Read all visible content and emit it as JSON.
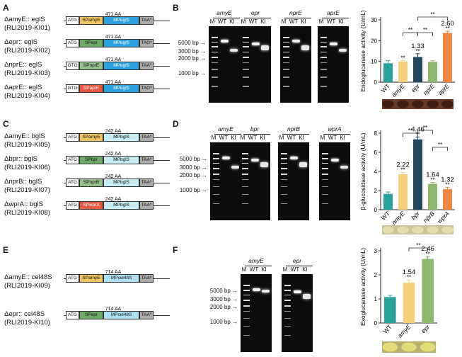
{
  "panels": {
    "A": "A",
    "B": "B",
    "C": "C",
    "D": "D",
    "E": "E",
    "F": "F"
  },
  "colors": {
    "spamyE": "#f1c35f",
    "spepr": "#6dab67",
    "spnprE": "#94c08c",
    "spaprE": "#e9573f",
    "mpegls": "#2aa2dd",
    "mpbgls": "#c6ecf5",
    "mpcel": "#aee0f4",
    "teal": "#2aa19a",
    "yellow": "#f5d07a",
    "navy": "#22465e",
    "green": "#8db86e",
    "orange": "#f08743"
  },
  "constructsA": [
    {
      "name": "ΔamyE:: eglS",
      "id": "(RLI2019-KI01)",
      "start": "ATG",
      "sp": "SPamyE",
      "mp": "MPeglS",
      "stop": "TAA*",
      "aa": "471 AA"
    },
    {
      "name": "Δepr:: eglS",
      "id": "(RLI2019-KI02)",
      "start": "ATG",
      "sp": "SPepr",
      "mp": "MPeglS",
      "stop": "TAG*",
      "aa": "471 AA"
    },
    {
      "name": "ΔnprE:: eglS",
      "id": "(RLI2019-KI03)",
      "start": "GTG",
      "sp": "SPnprE",
      "mp": "MPeglS",
      "stop": "TAA*",
      "aa": "471 AA"
    },
    {
      "name": "ΔaprE:: eglS",
      "id": "(RLI2019-KI04)",
      "start": "GTG",
      "sp": "SPaprE",
      "mp": "MPeglS",
      "stop": "TAG*",
      "aa": "471 AA"
    }
  ],
  "constructsC": [
    {
      "name": "ΔamyE:: bglS",
      "id": "(RLI2019-KI05)",
      "start": "ATG",
      "sp": "SPamyE",
      "mp": "MPbglS",
      "stop": "TAA*",
      "aa": "242 AA"
    },
    {
      "name": "Δbpr:: bglS",
      "id": "(RLI2019-KI06)",
      "start": "ATG",
      "sp": "SPbpr",
      "mp": "MPbglS",
      "stop": "TAA*",
      "aa": "242 AA"
    },
    {
      "name": "ΔnprB:: bglS",
      "id": "(RLI2019-KI07)",
      "start": "ATG",
      "sp": "SPnprB",
      "mp": "MPbglS",
      "stop": "TAA*",
      "aa": "242 AA"
    },
    {
      "name": "ΔwprA:: bglS",
      "id": "(RLI2019-KI08)",
      "start": "ATG",
      "sp": "SPwprA",
      "mp": "MPbglS",
      "stop": "TAA*",
      "aa": "242 AA"
    }
  ],
  "constructsE": [
    {
      "name": "ΔamyE:: cel48S",
      "id": "(RLI2019-KI09)",
      "start": "ATG",
      "sp": "SPamyE",
      "mp": "MPcel48S",
      "stop": "TAA*",
      "aa": "714 AA"
    },
    {
      "name": "Δepr:: cel48S",
      "id": "(RLI2019-KI10)",
      "start": "ATG",
      "sp": "SPepr",
      "mp": "MPcel48S",
      "stop": "TAA*",
      "aa": "714 AA"
    }
  ],
  "gelsB": {
    "markers": [
      "5000 bp",
      "3000 bp",
      "2000 bp",
      "1000 bp"
    ],
    "lanes": [
      "M",
      "WT",
      "KI"
    ],
    "genes": [
      "amyE",
      "epr",
      "nprE",
      "aprE"
    ]
  },
  "gelsD": {
    "markers": [
      "5000 bp",
      "3000 bp",
      "2000 bp",
      "1000 bp"
    ],
    "lanes": [
      "M",
      "WT",
      "KI"
    ],
    "genes": [
      "amyE",
      "bpr",
      "nprB",
      "wprA"
    ]
  },
  "gelsF": {
    "markers": [
      "5000 bp",
      "3000 bp",
      "2000 bp",
      "1000 bp"
    ],
    "lanes": [
      "M",
      "WT",
      "KI"
    ],
    "genes": [
      "amyE",
      "epr"
    ]
  },
  "chart_data": [
    {
      "type": "bar",
      "ylabel": "Endoglucanase activity (U/mL)",
      "categories": [
        "WT",
        "amyE",
        "epr",
        "nprE",
        "aprE"
      ],
      "values": [
        9.1,
        9.9,
        12.1,
        9.8,
        23.7
      ],
      "errors": [
        1.2,
        0.5,
        1.6,
        0.5,
        0.8
      ],
      "ylim": [
        0,
        30
      ],
      "yticks": [
        0,
        10,
        20,
        30
      ],
      "labels": [
        "",
        "",
        "1.33",
        "",
        "2.60"
      ],
      "stars": [
        "",
        "**",
        "**",
        "",
        "**"
      ],
      "brackets": [
        {
          "from": 1,
          "to": 2,
          "label": "**"
        },
        {
          "from": 2,
          "to": 3,
          "label": "**"
        },
        {
          "from": 2,
          "to": 4,
          "label": "**"
        }
      ],
      "colors": [
        "#2aa19a",
        "#f5d07a",
        "#22465e",
        "#8db86e",
        "#f08743"
      ]
    },
    {
      "type": "bar",
      "ylabel": "β-glucosidase activity (U/mL)",
      "categories": [
        "WT",
        "amyE",
        "bpr",
        "nprB",
        "wprA"
      ],
      "values": [
        1.65,
        3.7,
        7.35,
        2.7,
        2.15
      ],
      "errors": [
        0.2,
        0.2,
        0.25,
        0.15,
        0.2
      ],
      "ylim": [
        0,
        8
      ],
      "yticks": [
        0,
        2,
        4,
        6,
        8
      ],
      "labels": [
        "",
        "2.22",
        "4.46",
        "1.64",
        "1.32"
      ],
      "stars": [
        "",
        "**",
        "**",
        "**",
        "**"
      ],
      "brackets": [
        {
          "from": 1,
          "to": 2,
          "label": "**"
        },
        {
          "from": 2,
          "to": 3,
          "label": "**"
        },
        {
          "from": 3,
          "to": 4,
          "label": "**"
        }
      ],
      "colors": [
        "#2aa19a",
        "#f5d07a",
        "#22465e",
        "#8db86e",
        "#f08743"
      ]
    },
    {
      "type": "bar",
      "ylabel": "Exoglucanase activity (U/mL)",
      "categories": [
        "WT",
        "amyE",
        "epr"
      ],
      "values": [
        1.08,
        1.67,
        2.66
      ],
      "errors": [
        0.07,
        0.12,
        0.1
      ],
      "ylim": [
        0,
        3
      ],
      "yticks": [
        0,
        1,
        2,
        3
      ],
      "labels": [
        "",
        "1.54",
        "2.46"
      ],
      "stars": [
        "",
        "**",
        "**"
      ],
      "brackets": [
        {
          "from": 1,
          "to": 2,
          "label": "**"
        }
      ],
      "colors": [
        "#2aa19a",
        "#f5d07a",
        "#8db86e"
      ]
    }
  ]
}
